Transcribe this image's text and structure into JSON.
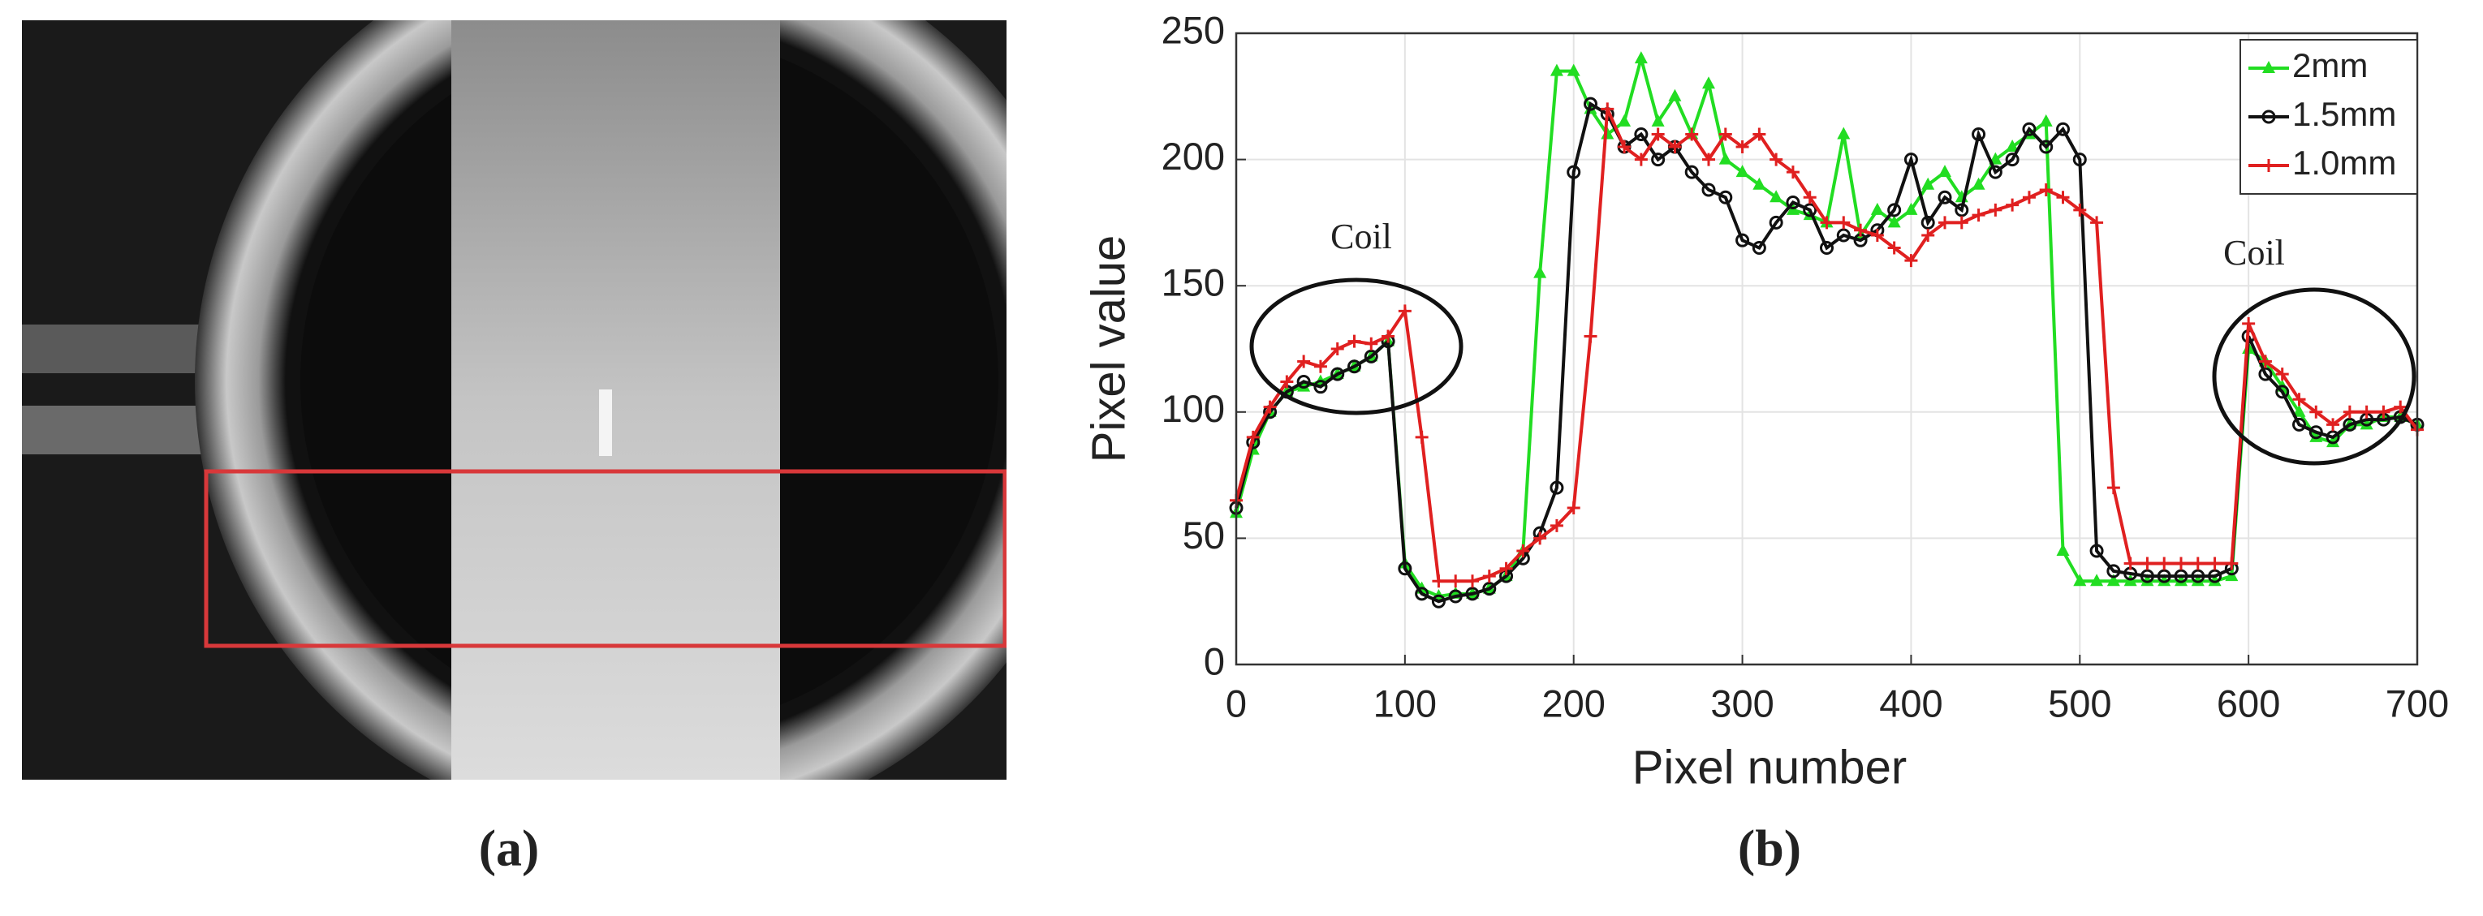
{
  "panel_labels": [
    "(a)",
    "(b)"
  ],
  "chart_data": {
    "type": "line",
    "xlabel": "Pixel number",
    "ylabel": "Pixel value",
    "annotations": [
      "Coil",
      "Coil"
    ],
    "xlim": [
      0,
      700
    ],
    "xticks": [
      0,
      100,
      200,
      300,
      400,
      500,
      600,
      700
    ],
    "ylim": [
      0,
      250
    ],
    "yticks": [
      0,
      50,
      100,
      150,
      200,
      250
    ],
    "grid": true,
    "legend": "upper right",
    "x": [
      0,
      10,
      20,
      30,
      40,
      50,
      60,
      70,
      80,
      90,
      100,
      110,
      120,
      130,
      140,
      150,
      160,
      170,
      180,
      190,
      200,
      210,
      220,
      230,
      240,
      250,
      260,
      270,
      280,
      290,
      300,
      310,
      320,
      330,
      340,
      350,
      360,
      370,
      380,
      390,
      400,
      410,
      420,
      430,
      440,
      450,
      460,
      470,
      480,
      490,
      500,
      510,
      520,
      530,
      540,
      550,
      560,
      570,
      580,
      590,
      600,
      610,
      620,
      630,
      640,
      650,
      660,
      670,
      680,
      690,
      700
    ],
    "series": [
      {
        "name": "2mm",
        "color": "#22dd22",
        "marker": "triangle",
        "values": [
          60,
          85,
          100,
          108,
          110,
          112,
          115,
          118,
          122,
          128,
          40,
          30,
          27,
          28,
          28,
          30,
          35,
          45,
          155,
          235,
          235,
          220,
          210,
          215,
          240,
          215,
          225,
          210,
          230,
          200,
          195,
          190,
          185,
          180,
          178,
          175,
          210,
          170,
          180,
          175,
          180,
          190,
          195,
          185,
          190,
          200,
          205,
          210,
          215,
          45,
          33,
          33,
          33,
          33,
          33,
          33,
          33,
          33,
          33,
          35,
          125,
          120,
          110,
          100,
          90,
          88,
          95,
          95,
          98,
          98,
          95
        ]
      },
      {
        "name": "1.5mm",
        "color": "#111111",
        "marker": "circle",
        "values": [
          62,
          88,
          100,
          108,
          112,
          110,
          115,
          118,
          122,
          128,
          38,
          28,
          25,
          27,
          28,
          30,
          35,
          42,
          52,
          70,
          195,
          222,
          218,
          205,
          210,
          200,
          205,
          195,
          188,
          185,
          168,
          165,
          175,
          183,
          180,
          165,
          170,
          168,
          172,
          180,
          200,
          175,
          185,
          180,
          210,
          195,
          200,
          212,
          205,
          212,
          200,
          45,
          37,
          36,
          35,
          35,
          35,
          35,
          35,
          38,
          130,
          115,
          108,
          95,
          92,
          90,
          95,
          97,
          97,
          98,
          95
        ]
      },
      {
        "name": "1.0mm",
        "color": "#e02020",
        "marker": "plus",
        "values": [
          65,
          90,
          102,
          112,
          120,
          118,
          125,
          128,
          127,
          130,
          140,
          90,
          33,
          33,
          33,
          35,
          38,
          45,
          50,
          55,
          62,
          130,
          220,
          205,
          200,
          210,
          205,
          210,
          200,
          210,
          205,
          210,
          200,
          195,
          185,
          175,
          175,
          172,
          170,
          165,
          160,
          170,
          175,
          175,
          178,
          180,
          182,
          185,
          188,
          185,
          180,
          175,
          70,
          40,
          40,
          40,
          40,
          40,
          40,
          40,
          135,
          120,
          115,
          105,
          100,
          95,
          100,
          100,
          100,
          102,
          93
        ]
      }
    ]
  }
}
